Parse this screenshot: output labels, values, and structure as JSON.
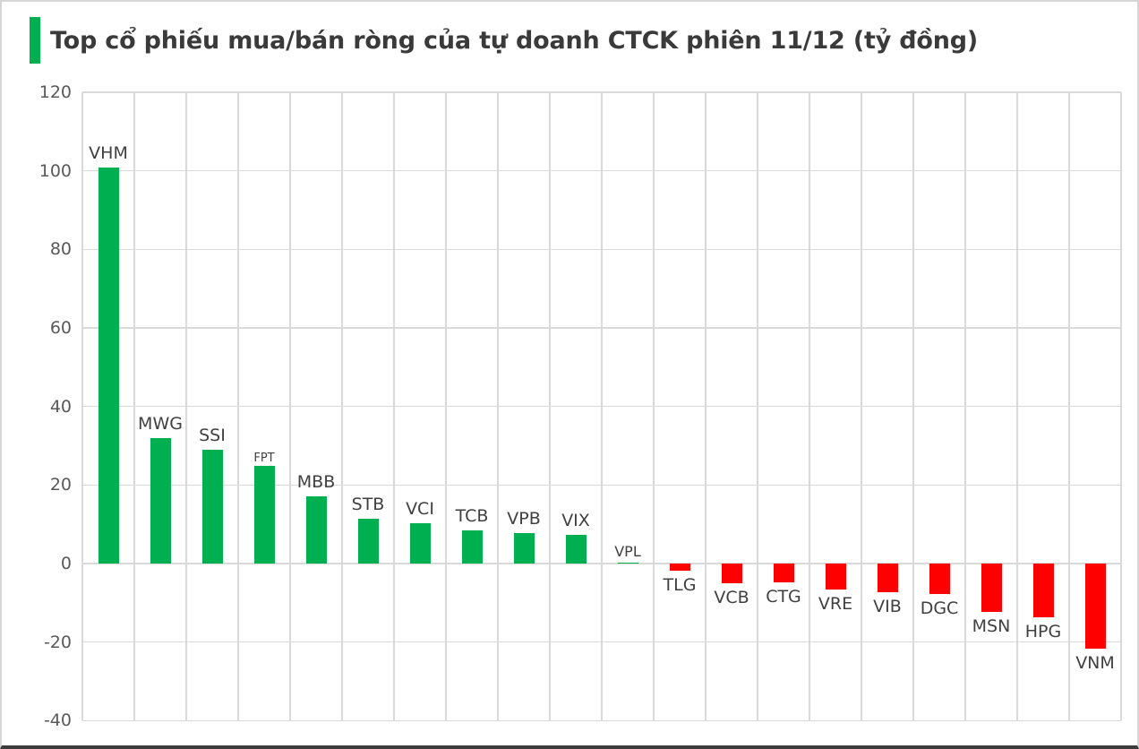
{
  "title": {
    "text": "Top cổ phiếu mua/bán ròng của tự doanh CTCK phiên 11/12 (tỷ đồng)",
    "accent_color": "#00B050"
  },
  "chart_data": {
    "type": "bar",
    "title": "Top cổ phiếu mua/bán ròng của tự doanh CTCK phiên 11/12 (tỷ đồng)",
    "unit": "tỷ đồng",
    "categories": [
      "VHM",
      "MWG",
      "SSI",
      "FPT",
      "MBB",
      "STB",
      "VCI",
      "TCB",
      "VPB",
      "VIX",
      "VPL",
      "TLG",
      "VCB",
      "CTG",
      "VRE",
      "VIB",
      "DGC",
      "MSN",
      "HPG",
      "VNM"
    ],
    "values": [
      100.8,
      32,
      28.9,
      24.9,
      17.2,
      11.5,
      10.3,
      8.4,
      7.8,
      7.3,
      0.2,
      -1.9,
      -5.0,
      -4.9,
      -6.7,
      -7.2,
      -7.8,
      -12.4,
      -13.6,
      -21.6
    ],
    "xlabel": "",
    "ylabel": "",
    "ylim": [
      -40,
      120
    ],
    "y_ticks": [
      120,
      100,
      80,
      60,
      40,
      20,
      0,
      -20,
      -40
    ],
    "grid": true,
    "legend": "none",
    "positive_color": "#00B050",
    "negative_color": "#FF0000",
    "gridline_color": "#d9d9d9",
    "small_labels": [
      "FPT",
      "VPL"
    ]
  }
}
